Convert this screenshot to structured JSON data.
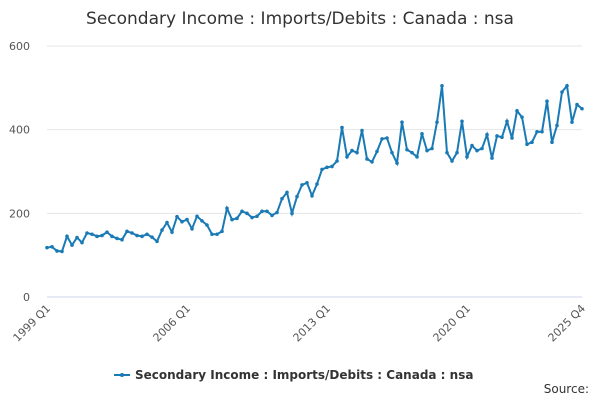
{
  "chart_data": {
    "type": "line",
    "title": "Secondary Income : Imports/Debits : Canada : nsa",
    "source": "Source:",
    "categories": [
      "1999 Q1",
      null,
      null,
      null,
      null,
      null,
      null,
      null,
      null,
      null,
      null,
      null,
      null,
      null,
      null,
      null,
      null,
      null,
      null,
      null,
      null,
      null,
      null,
      null,
      null,
      null,
      null,
      null,
      "2006 Q1",
      null,
      null,
      null,
      null,
      null,
      null,
      null,
      null,
      null,
      null,
      null,
      null,
      null,
      null,
      null,
      null,
      null,
      null,
      null,
      null,
      null,
      null,
      null,
      null,
      null,
      null,
      null,
      "2013 Q1",
      null,
      null,
      null,
      null,
      null,
      null,
      null,
      null,
      null,
      null,
      null,
      null,
      null,
      null,
      null,
      null,
      null,
      null,
      null,
      null,
      null,
      null,
      null,
      null,
      null,
      null,
      null,
      "2020 Q1",
      null,
      null,
      null,
      null,
      null,
      null,
      null,
      null,
      null,
      null,
      null,
      null,
      null,
      null,
      null,
      null,
      null,
      null,
      null,
      null,
      null,
      null,
      "2025 Q4"
    ],
    "series": [
      {
        "name": "Secondary Income : Imports/Debits : Canada : nsa",
        "color": "#1a7ab5",
        "values": [
          118,
          120,
          110,
          109,
          145,
          124,
          142,
          130,
          153,
          150,
          145,
          147,
          155,
          145,
          140,
          137,
          157,
          153,
          147,
          145,
          150,
          143,
          133,
          160,
          178,
          155,
          192,
          180,
          185,
          163,
          193,
          182,
          172,
          150,
          150,
          157,
          212,
          185,
          188,
          205,
          200,
          190,
          193,
          205,
          205,
          195,
          202,
          235,
          250,
          200,
          240,
          268,
          273,
          242,
          270,
          305,
          310,
          312,
          325,
          405,
          335,
          350,
          345,
          398,
          330,
          323,
          348,
          378,
          380,
          345,
          320,
          418,
          352,
          345,
          335,
          390,
          350,
          355,
          418,
          505,
          345,
          325,
          345,
          420,
          335,
          362,
          350,
          355,
          388,
          332,
          385,
          382,
          420,
          380,
          445,
          430,
          365,
          370,
          395,
          395,
          468,
          370,
          410,
          490,
          505,
          418,
          460,
          450
        ]
      }
    ],
    "ylim": [
      0,
      600
    ],
    "yticks": [
      0,
      200,
      400,
      600
    ],
    "grid": true
  }
}
